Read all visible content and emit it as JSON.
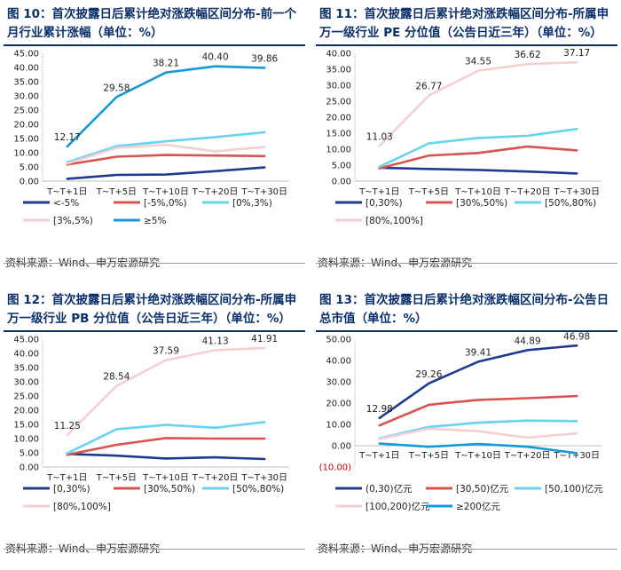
{
  "source": "资料来源：Wind、申万宏源研究",
  "chart_data": [
    {
      "type": "line",
      "title": "图 10：首次披露日后累计绝对涨跌幅区间分布-前一个月行业累计涨幅（单位：%）",
      "title_lines": [
        "图 10：首次披露日后累计绝对涨跌幅区间分布-前一个",
        "月行业累计涨幅（单位：%）"
      ],
      "categories": [
        "T~T+1日",
        "T~T+5日",
        "T~T+10日",
        "T~T+20日",
        "T~T+30日"
      ],
      "ylim": [
        0,
        45
      ],
      "yticks": [
        "0.00",
        "5.00",
        "10.00",
        "15.00",
        "20.00",
        "25.00",
        "30.00",
        "35.00",
        "40.00",
        "45.00"
      ],
      "grid": false,
      "legend_position": "bottom",
      "series": [
        {
          "name": "<-5%",
          "color": "#1f3b8f",
          "values": [
            0.8,
            2.2,
            2.3,
            3.5,
            4.8
          ]
        },
        {
          "name": "[-5%,0%)",
          "color": "#d9534f",
          "values": [
            5.8,
            8.6,
            9.2,
            9.0,
            8.8
          ]
        },
        {
          "name": "[0%,3%)",
          "color": "#66d4ee",
          "values": [
            6.6,
            12.3,
            14.0,
            15.5,
            17.2
          ]
        },
        {
          "name": "[3%,5%)",
          "color": "#f5cfd2",
          "values": [
            6.2,
            11.7,
            12.8,
            10.5,
            12.0
          ]
        },
        {
          "name": "≥5%",
          "color": "#149ad6",
          "values": [
            12.17,
            29.58,
            38.21,
            40.4,
            39.86
          ],
          "labels": [
            "12.17",
            "29.58",
            "38.21",
            "40.40",
            "39.86"
          ]
        }
      ]
    },
    {
      "type": "line",
      "title": "图 11：首次披露日后累计绝对涨跌幅区间分布-所属申万一级行业 PE 分位值（公告日近三年）（单位：%）",
      "title_lines": [
        "图 11：首次披露日后累计绝对涨跌幅区间分布-所属申",
        "万一级行业 PE 分位值（公告日近三年）（单位：%）"
      ],
      "categories": [
        "T~T+1日",
        "T~T+5日",
        "T~T+10日",
        "T~T+20日",
        "T~T+30日"
      ],
      "ylim": [
        0,
        40
      ],
      "yticks": [
        "0.00",
        "5.00",
        "10.00",
        "15.00",
        "20.00",
        "25.00",
        "30.00",
        "35.00",
        "40.00"
      ],
      "grid": false,
      "legend_position": "bottom",
      "series": [
        {
          "name": "[0,30%)",
          "color": "#1f3b8f",
          "values": [
            4.2,
            3.8,
            3.5,
            3.0,
            2.4
          ]
        },
        {
          "name": "[30%,50%)",
          "color": "#d9534f",
          "values": [
            4.0,
            8.0,
            8.8,
            10.8,
            9.6
          ]
        },
        {
          "name": "[50%,80%)",
          "color": "#66d4ee",
          "values": [
            4.5,
            11.8,
            13.5,
            14.2,
            16.3
          ]
        },
        {
          "name": "[80%,100%]",
          "color": "#f5cfd2",
          "values": [
            11.03,
            26.77,
            34.55,
            36.62,
            37.17
          ],
          "labels": [
            "11.03",
            "26.77",
            "34.55",
            "36.62",
            "37.17"
          ]
        }
      ]
    },
    {
      "type": "line",
      "title": "图 12：首次披露日后累计绝对涨跌幅区间分布-所属申万一级行业 PB 分位值（公告日近三年）（单位：%）",
      "title_lines": [
        "图 12：首次披露日后累计绝对涨跌幅区间分布-所属申",
        "万一级行业 PB 分位值（公告日近三年）（单位：%）"
      ],
      "categories": [
        "T~T+1日",
        "T~T+5日",
        "T~T+10日",
        "T~T+20日",
        "T~T+30日"
      ],
      "ylim": [
        0,
        45
      ],
      "yticks": [
        "0.00",
        "5.00",
        "10.00",
        "15.00",
        "20.00",
        "25.00",
        "30.00",
        "35.00",
        "40.00",
        "45.00"
      ],
      "grid": false,
      "legend_position": "bottom",
      "series": [
        {
          "name": "[0,30%)",
          "color": "#1f3b8f",
          "values": [
            4.6,
            4.0,
            3.0,
            3.4,
            2.8
          ]
        },
        {
          "name": "[30%,50%)",
          "color": "#d9534f",
          "values": [
            4.3,
            7.8,
            10.2,
            10.0,
            10.0
          ]
        },
        {
          "name": "[50%,80%)",
          "color": "#66d4ee",
          "values": [
            4.8,
            13.3,
            14.8,
            13.8,
            15.8
          ]
        },
        {
          "name": "[80%,100%]",
          "color": "#f5cfd2",
          "values": [
            11.25,
            28.54,
            37.59,
            41.13,
            41.91
          ],
          "labels": [
            "11.25",
            "28.54",
            "37.59",
            "41.13",
            "41.91"
          ]
        }
      ]
    },
    {
      "type": "line",
      "title": "图 13：首次披露日后累计绝对涨跌幅区间分布-公告日总市值（单位：%）",
      "title_lines": [
        "图 13：首次披露日后累计绝对涨跌幅区间分布-公告日",
        "总市值（单位：%）"
      ],
      "categories": [
        "T~T+1日",
        "T~T+5日",
        "T~T+10日",
        "T~T+20日",
        "T~T+30日"
      ],
      "ylim": [
        -10,
        50
      ],
      "yticks": [
        "(10.00)",
        "0.00",
        "10.00",
        "20.00",
        "30.00",
        "40.00",
        "50.00"
      ],
      "negative_tick_color": "#c00000",
      "grid": false,
      "legend_position": "bottom",
      "series": [
        {
          "name": "(0,30)亿元",
          "color": "#1f3b8f",
          "values": [
            12.98,
            29.26,
            39.41,
            44.89,
            46.98
          ],
          "labels": [
            "12.98",
            "29.26",
            "39.41",
            "44.89",
            "46.98"
          ]
        },
        {
          "name": "[30,50)亿元",
          "color": "#d9534f",
          "values": [
            9.5,
            19.2,
            21.5,
            22.3,
            23.3
          ]
        },
        {
          "name": "[50,100)亿元",
          "color": "#66d4ee",
          "values": [
            3.5,
            8.8,
            10.8,
            11.8,
            11.5
          ]
        },
        {
          "name": "[100,200)亿元",
          "color": "#f5cfd2",
          "values": [
            3.2,
            8.0,
            6.8,
            3.8,
            5.8
          ]
        },
        {
          "name": "≥200亿元",
          "color": "#149ad6",
          "values": [
            1.0,
            -0.5,
            0.8,
            -0.5,
            -3.5
          ]
        }
      ]
    }
  ]
}
